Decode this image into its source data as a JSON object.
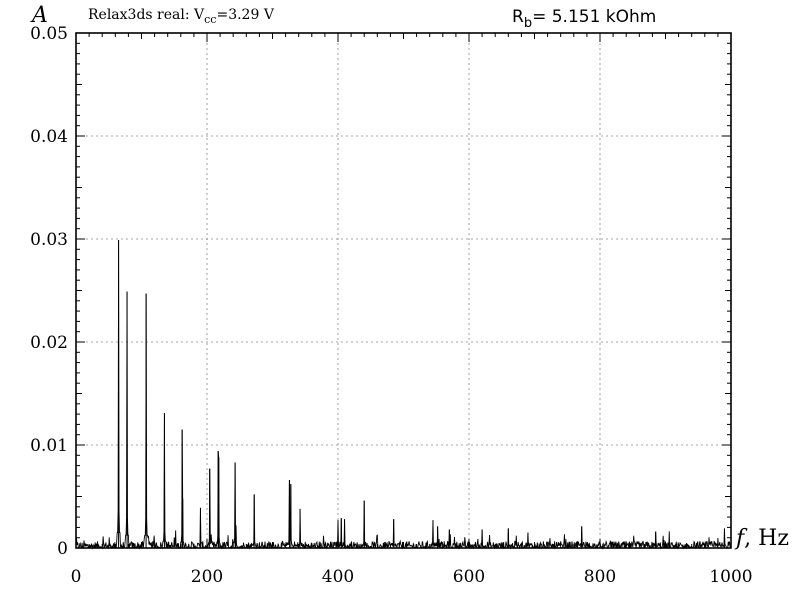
{
  "chart_data": {
    "type": "line",
    "title_left": {
      "prefix": "Relax3ds real: V",
      "sub": "cc",
      "suffix": "=3.29 V"
    },
    "title_right": {
      "prefix": "R",
      "sub": "b",
      "suffix": "= 5.151 kOhm"
    },
    "ylabel": "A",
    "xlabel_italic": "f",
    "xlabel_rest": ", Hz",
    "xlim": [
      0,
      1000
    ],
    "ylim": [
      0,
      0.05
    ],
    "x_ticks": [
      "0",
      "200",
      "400",
      "600",
      "800",
      "1000"
    ],
    "y_ticks": [
      "0",
      "0.01",
      "0.02",
      "0.03",
      "0.04",
      "0.05"
    ],
    "grid": true,
    "peaks": [
      {
        "x": 65,
        "y": 0.0299
      },
      {
        "x": 78,
        "y": 0.0249
      },
      {
        "x": 107,
        "y": 0.0247
      },
      {
        "x": 135,
        "y": 0.0131
      },
      {
        "x": 162,
        "y": 0.0115
      },
      {
        "x": 163,
        "y": 0.0048
      },
      {
        "x": 190,
        "y": 0.0039
      },
      {
        "x": 204,
        "y": 0.0077
      },
      {
        "x": 217,
        "y": 0.0094
      },
      {
        "x": 218,
        "y": 0.0088
      },
      {
        "x": 243,
        "y": 0.0083
      },
      {
        "x": 244,
        "y": 0.0022
      },
      {
        "x": 272,
        "y": 0.0052
      },
      {
        "x": 326,
        "y": 0.0066
      },
      {
        "x": 328,
        "y": 0.0062
      },
      {
        "x": 342,
        "y": 0.0038
      },
      {
        "x": 400,
        "y": 0.0027
      },
      {
        "x": 405,
        "y": 0.0029
      },
      {
        "x": 410,
        "y": 0.0028
      },
      {
        "x": 440,
        "y": 0.0046
      },
      {
        "x": 485,
        "y": 0.0028
      },
      {
        "x": 545,
        "y": 0.0027
      },
      {
        "x": 552,
        "y": 0.0021
      },
      {
        "x": 570,
        "y": 0.0018
      },
      {
        "x": 620,
        "y": 0.0018
      },
      {
        "x": 660,
        "y": 0.0019
      },
      {
        "x": 690,
        "y": 0.0015
      },
      {
        "x": 772,
        "y": 0.0021
      },
      {
        "x": 885,
        "y": 0.0016
      },
      {
        "x": 990,
        "y": 0.0019
      }
    ],
    "noise_level": 0.0012,
    "series_color": "#000000",
    "grid_color": "#888888"
  }
}
